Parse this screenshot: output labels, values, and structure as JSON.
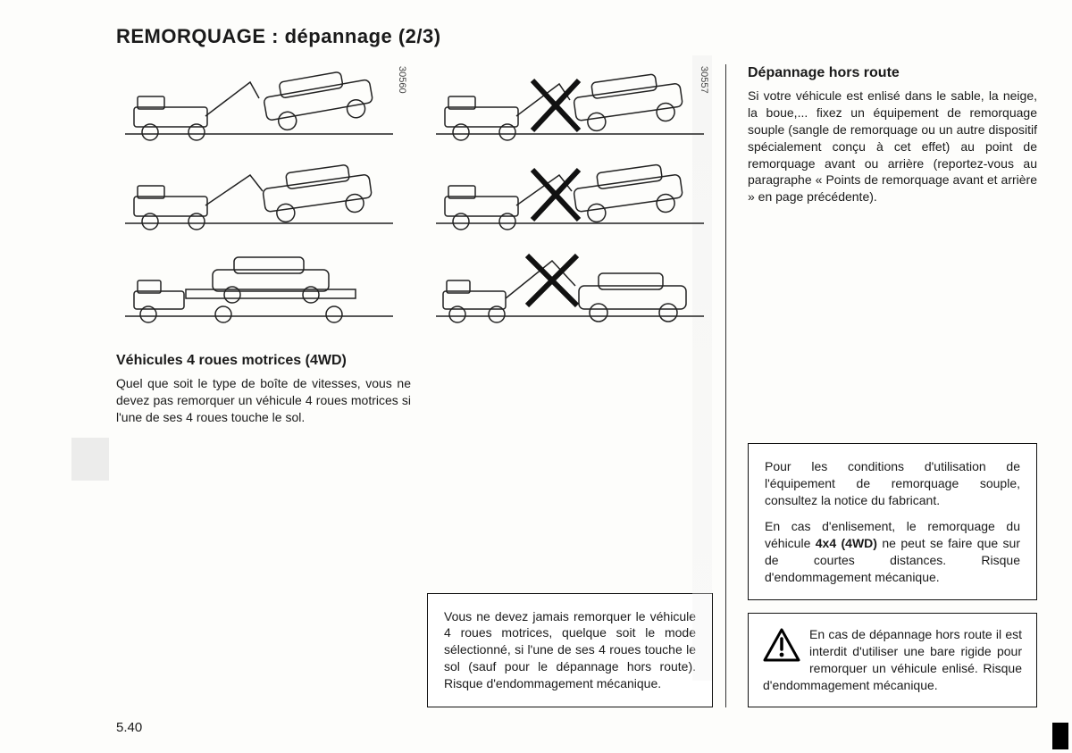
{
  "title": "REMORQUAGE : dépannage (2/3)",
  "left": {
    "figcode": "30560",
    "heading": "Véhicules 4 roues motrices (4WD)",
    "para": "Quel que soit le type de boîte de vitesses, vous ne devez pas remorquer un véhicule 4 roues motrices si l'une de ses 4 roues touche le sol."
  },
  "mid": {
    "figcode": "30557",
    "note": "Vous ne devez jamais remorquer le véhicule 4 roues motrices, quelque soit le mode sélectionné, si l'une de ses 4 roues touche le sol (sauf pour le dépannage hors route). Risque d'endommagement mécanique."
  },
  "right": {
    "heading": "Dépannage hors route",
    "para": "Si votre véhicule est enlisé dans le sable, la neige, la boue,... fixez un équipement de remorquage souple (sangle de remorquage ou un autre dispositif spécialement conçu à cet effet) au point de remorquage avant ou arrière (reportez-vous au paragraphe « Points de remorquage avant et arrière » en page précédente).",
    "note1a": "Pour les conditions d'utilisation de l'équipement de remorquage souple, consultez la notice du fabricant.",
    "note1b": "En cas d'enlisement, le remorquage du véhicule 4x4 (4WD) ne peut se faire que sur de courtes distances. Risque d'endommagement mécanique.",
    "warn": "En cas de dépannage hors route il est interdit d'utiliser une bare rigide pour remorquer un véhicule enlisé. Risque d'endommagement mécanique."
  },
  "page_num": "5.40",
  "diagram_stroke": "#222222",
  "cross_stroke": "#111111"
}
